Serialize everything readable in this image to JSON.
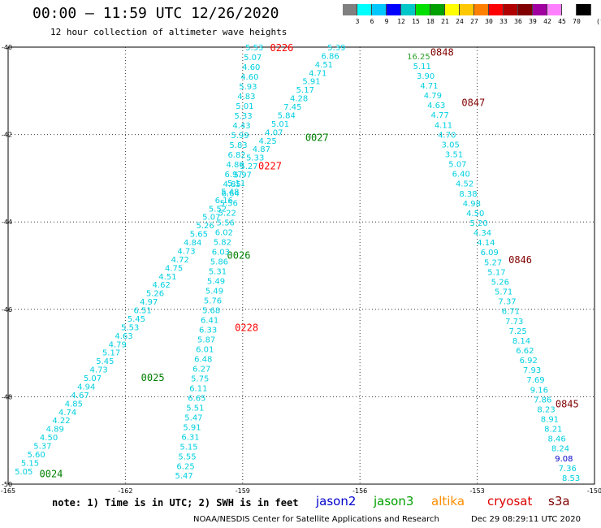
{
  "header": {
    "title": "00:00 – 11:59 UTC 12/26/2020",
    "subtitle": "12 hour collection of altimeter wave heights"
  },
  "colorbar": {
    "colors": [
      "#808080",
      "#00ffff",
      "#00c8ff",
      "#0000ff",
      "#00c8c8",
      "#00e000",
      "#00a000",
      "#ffff00",
      "#ffc800",
      "#ff8000",
      "#ff0000",
      "#b00000",
      "#800000",
      "#a000a0",
      "#ff80ff",
      "#ffffff",
      "#000000"
    ],
    "labels": [
      "3",
      "6",
      "9",
      "12",
      "15",
      "18",
      "21",
      "24",
      "27",
      "30",
      "33",
      "36",
      "39",
      "42",
      "45",
      "70"
    ],
    "unit": "(ft)"
  },
  "footer": {
    "note": "note: 1) Time is in UTC; 2) SWH is in feet",
    "credit": "NOAA/NESDIS Center for Satellite Applications and Research",
    "timestamp": "Dec 29 08:29:11 UTC 2020"
  },
  "legend": [
    {
      "name": "jason2",
      "color": "#0000cc"
    },
    {
      "name": "jason3",
      "color": "#00a000"
    },
    {
      "name": "altika",
      "color": "#ff8c00"
    },
    {
      "name": "cryosat",
      "color": "#e00000"
    },
    {
      "name": "s3a",
      "color": "#800000"
    }
  ],
  "chart_data": {
    "type": "scatter",
    "xlim": [
      -165,
      -150
    ],
    "ylim": [
      -50,
      -40
    ],
    "x_ticks": [
      -165,
      -162,
      -159,
      -156,
      -153,
      -150
    ],
    "y_ticks": [
      -40,
      -42,
      -44,
      -46,
      -48,
      -50
    ],
    "grid": true,
    "value_color": "#00d0e0",
    "tracks": [
      {
        "id": "track-west",
        "x_start": -164.6,
        "y_start": -49.7,
        "x_end": -156.6,
        "y_end": -40.0,
        "values": [
          "5.05",
          "5.15",
          "5.60",
          "5.37",
          "4.50",
          "4.89",
          "4.22",
          "4.74",
          "4.85",
          "4.67",
          "4.94",
          "5.07",
          "4.73",
          "5.45",
          "5.17",
          "4.79",
          "4.63",
          "5.53",
          "5.45",
          "6.51",
          "4.97",
          "5.26",
          "4.62",
          "4.51",
          "4.75",
          "4.72",
          "4.73",
          "4.84",
          "5.65",
          "5.26",
          "5.07",
          "5.52",
          "6.16",
          "5.48",
          "5.11",
          "5.97",
          "5.27",
          "5.33",
          "4.87",
          "4.25",
          "4.07",
          "5.01",
          "5.84",
          "7.45",
          "4.28",
          "5.17",
          "5.91",
          "4.71",
          "4.51",
          "6.86",
          "5.39"
        ],
        "time_labels": [
          {
            "text": "0024",
            "color": "#008000",
            "x": -164.2,
            "y": -49.75
          },
          {
            "text": "0025",
            "color": "#008000",
            "x": -161.6,
            "y": -47.55
          },
          {
            "text": "0026",
            "color": "#008000",
            "x": -159.4,
            "y": -44.75
          },
          {
            "text": "0027",
            "color": "#008000",
            "x": -157.4,
            "y": -42.05
          }
        ]
      },
      {
        "id": "track-middle",
        "x_start": -160.5,
        "y_start": -49.8,
        "x_end": -158.7,
        "y_end": -40.0,
        "values": [
          "5.47",
          "6.25",
          "5.55",
          "5.15",
          "6.31",
          "5.91",
          "5.47",
          "5.51",
          "6.65",
          "6.11",
          "5.75",
          "6.27",
          "6.48",
          "6.01",
          "5.87",
          "6.33",
          "6.41",
          "5.68",
          "5.76",
          "5.49",
          "5.49",
          "5.31",
          "5.86",
          "6.03",
          "5.82",
          "6.02",
          "5.56",
          "5.22",
          "5.56",
          "6.64",
          "4.85",
          "6.97",
          "4.80",
          "6.82",
          "5.83",
          "5.99",
          "4.43",
          "5.33",
          "5.01",
          "4.83",
          "5.93",
          "4.60",
          "4.60",
          "5.07",
          "5.53"
        ],
        "time_labels": [
          {
            "text": "0228",
            "color": "#ff0000",
            "x": -159.2,
            "y": -46.4
          },
          {
            "text": "0227",
            "color": "#ff0000",
            "x": -158.6,
            "y": -42.7
          },
          {
            "text": "0226",
            "color": "#ff0000",
            "x": -158.3,
            "y": -40.0
          }
        ]
      },
      {
        "id": "track-east",
        "x_start": -154.5,
        "y_start": -40.2,
        "x_end": -150.6,
        "y_end": -49.85,
        "values": [
          "16.25",
          "5.11",
          "3.90",
          "4.71",
          "4.79",
          "4.63",
          "4.77",
          "4.11",
          "4.70",
          "3.05",
          "3.51",
          "5.07",
          "6.40",
          "4.52",
          "8.38",
          "4.98",
          "4.50",
          "5.20",
          "4.34",
          "4.14",
          "6.09",
          "5.27",
          "5.17",
          "5.26",
          "5.71",
          "7.37",
          "6.71",
          "7.73",
          "7.25",
          "8.14",
          "6.62",
          "6.92",
          "7.93",
          "7.69",
          "9.16",
          "7.86",
          "8.23",
          "8.91",
          "8.21",
          "8.46",
          "8.24",
          "9.08",
          "7.36",
          "8.53"
        ],
        "value_colors": {
          "0": "#2ca02c",
          "41": "#0000cc"
        },
        "time_labels": [
          {
            "text": "0848",
            "color": "#800000",
            "x": -154.2,
            "y": -40.1
          },
          {
            "text": "0847",
            "color": "#800000",
            "x": -153.4,
            "y": -41.25
          },
          {
            "text": "0846",
            "color": "#800000",
            "x": -152.2,
            "y": -44.85
          },
          {
            "text": "0845",
            "color": "#800000",
            "x": -151.0,
            "y": -48.15
          }
        ]
      }
    ]
  }
}
